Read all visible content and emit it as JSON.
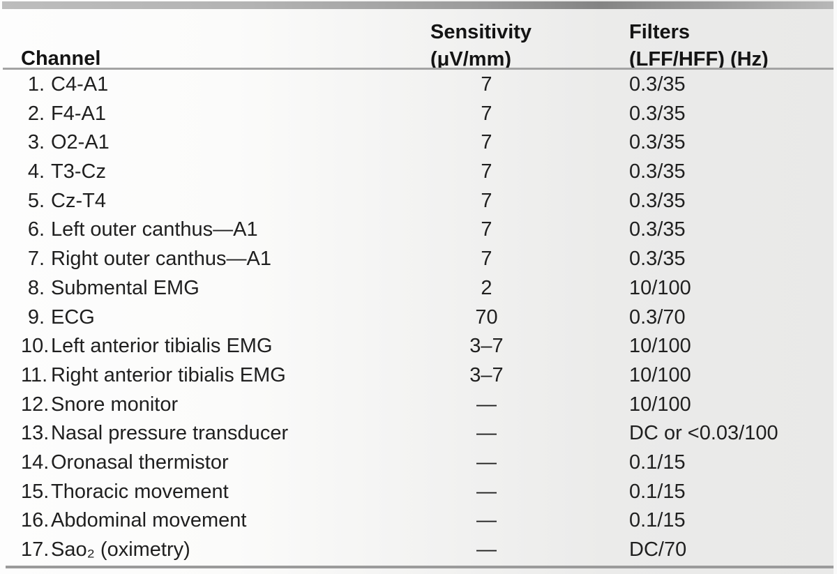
{
  "colors": {
    "page_bg_left": "#fdfdfd",
    "page_bg_right": "#e9e9e8",
    "rule_gray": "#9b9b9b",
    "header_rule_gray": "#a3a3a3",
    "text": "#1f1f1f"
  },
  "table": {
    "columns": [
      {
        "id": "channel",
        "label": "Channel"
      },
      {
        "id": "sensitivity",
        "line1": "Sensitivity",
        "line2": "(μV/mm)"
      },
      {
        "id": "filters",
        "line1": "Filters",
        "line2": "(LFF/HFF) (Hz)"
      }
    ],
    "rows": [
      {
        "num": "1.",
        "channel": "C4-A1",
        "sensitivity": "7",
        "filters": "0.3/35"
      },
      {
        "num": "2.",
        "channel": "F4-A1",
        "sensitivity": "7",
        "filters": "0.3/35"
      },
      {
        "num": "3.",
        "channel": "O2-A1",
        "sensitivity": "7",
        "filters": "0.3/35"
      },
      {
        "num": "4.",
        "channel": "T3-Cz",
        "sensitivity": "7",
        "filters": "0.3/35"
      },
      {
        "num": "5.",
        "channel": "Cz-T4",
        "sensitivity": "7",
        "filters": "0.3/35"
      },
      {
        "num": "6.",
        "channel": "Left outer canthus—A1",
        "sensitivity": "7",
        "filters": "0.3/35"
      },
      {
        "num": "7.",
        "channel": "Right outer canthus—A1",
        "sensitivity": "7",
        "filters": "0.3/35"
      },
      {
        "num": "8.",
        "channel": "Submental EMG",
        "sensitivity": "2",
        "filters": "10/100"
      },
      {
        "num": "9.",
        "channel": "ECG",
        "sensitivity": "70",
        "filters": "0.3/70"
      },
      {
        "num": "10.",
        "channel": "Left anterior tibialis EMG",
        "sensitivity": "3–7",
        "filters": "10/100"
      },
      {
        "num": "11.",
        "channel": "Right anterior tibialis EMG",
        "sensitivity": "3–7",
        "filters": "10/100"
      },
      {
        "num": "12.",
        "channel": "Snore monitor",
        "sensitivity": "—",
        "filters": "10/100"
      },
      {
        "num": "13.",
        "channel": "Nasal pressure transducer",
        "sensitivity": "—",
        "filters": "DC or <0.03/100"
      },
      {
        "num": "14.",
        "channel": "Oronasal thermistor",
        "sensitivity": "—",
        "filters": "0.1/15"
      },
      {
        "num": "15.",
        "channel": "Thoracic movement",
        "sensitivity": "—",
        "filters": "0.1/15"
      },
      {
        "num": "16.",
        "channel": "Abdominal movement",
        "sensitivity": "—",
        "filters": "0.1/15"
      },
      {
        "num": "17.",
        "channel": "Saᴏ₂ (oximetry)",
        "sensitivity": "—",
        "filters": "DC/70"
      }
    ]
  }
}
